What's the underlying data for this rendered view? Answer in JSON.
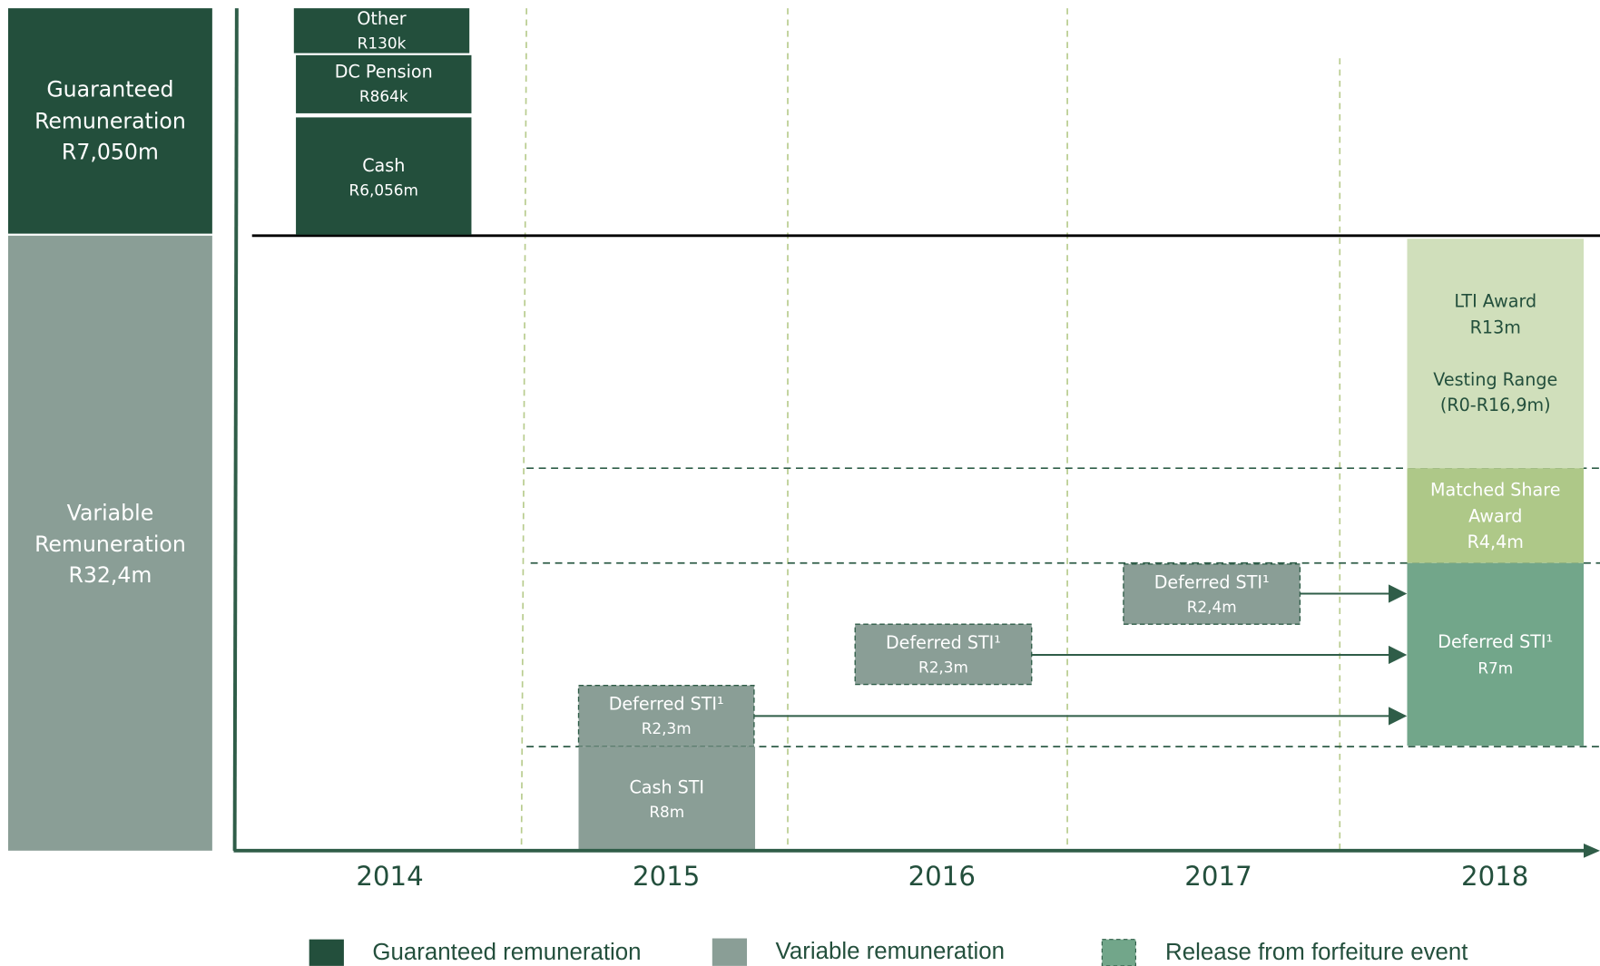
{
  "side_panels": [
    {
      "lines": [
        "Guaranteed",
        "Remuneration",
        "R7,050m"
      ]
    },
    {
      "lines": [
        "Variable",
        "Remuneration",
        "R32,4m"
      ]
    }
  ],
  "years": [
    "2014",
    "2015",
    "2016",
    "2017",
    "2018"
  ],
  "boxes": [
    {
      "lines": [
        "Other",
        "R130k"
      ]
    },
    {
      "lines": [
        "DC Pension",
        "R864k"
      ]
    },
    {
      "lines": [
        "Cash",
        "R6,056m"
      ]
    },
    {
      "lines": [
        "Deferred STI¹",
        "R2,3m"
      ]
    },
    {
      "lines": [
        "Cash STI",
        "R8m"
      ]
    },
    {
      "lines": [
        "Deferred STI¹",
        "R2,3m"
      ]
    },
    {
      "lines": [
        "Deferred STI¹",
        "R2,4m"
      ]
    },
    {
      "lines": [
        "LTI Award",
        "R13m",
        "Vesting Range",
        "(R0-R16,9m)"
      ]
    },
    {
      "lines": [
        "Matched Share",
        "Award",
        "R4,4m"
      ]
    },
    {
      "lines": [
        "Deferred STI¹",
        "R7m"
      ]
    }
  ],
  "legend": [
    "Guaranteed remuneration",
    "Variable remuneration",
    "Release from forfeiture event"
  ]
}
